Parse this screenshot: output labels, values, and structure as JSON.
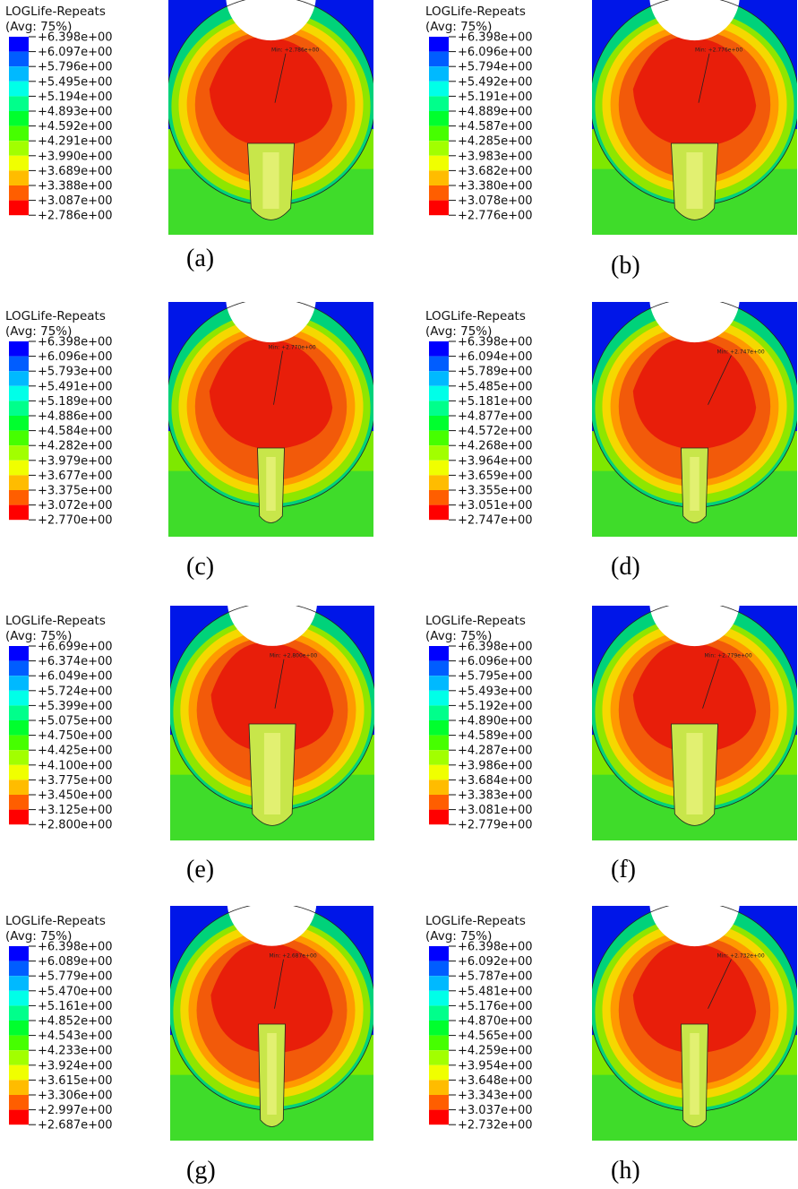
{
  "figure": {
    "panels": [
      {
        "caption": "(a)",
        "legend_title": "LOGLife-Repeats",
        "legend_avg": "(Avg: 75%)",
        "values": [
          "+6.398e+00",
          "+6.097e+00",
          "+5.796e+00",
          "+5.495e+00",
          "+5.194e+00",
          "+4.893e+00",
          "+4.592e+00",
          "+4.291e+00",
          "+3.990e+00",
          "+3.689e+00",
          "+3.388e+00",
          "+3.087e+00",
          "+2.786e+00"
        ],
        "min_label": "Min: +2.786e+00"
      },
      {
        "caption": "(b)",
        "legend_title": "LOGLife-Repeats",
        "legend_avg": "(Avg: 75%)",
        "values": [
          "+6.398e+00",
          "+6.096e+00",
          "+5.794e+00",
          "+5.492e+00",
          "+5.191e+00",
          "+4.889e+00",
          "+4.587e+00",
          "+4.285e+00",
          "+3.983e+00",
          "+3.682e+00",
          "+3.380e+00",
          "+3.078e+00",
          "+2.776e+00"
        ],
        "min_label": "Min: +2.776e+00"
      },
      {
        "caption": "(c)",
        "legend_title": "LOGLife-Repeats",
        "legend_avg": "(Avg: 75%)",
        "values": [
          "+6.398e+00",
          "+6.096e+00",
          "+5.793e+00",
          "+5.491e+00",
          "+5.189e+00",
          "+4.886e+00",
          "+4.584e+00",
          "+4.282e+00",
          "+3.979e+00",
          "+3.677e+00",
          "+3.375e+00",
          "+3.072e+00",
          "+2.770e+00"
        ],
        "min_label": "Min: +2.770e+00"
      },
      {
        "caption": "(d)",
        "legend_title": "LOGLife-Repeats",
        "legend_avg": "(Avg: 75%)",
        "values": [
          "+6.398e+00",
          "+6.094e+00",
          "+5.789e+00",
          "+5.485e+00",
          "+5.181e+00",
          "+4.877e+00",
          "+4.572e+00",
          "+4.268e+00",
          "+3.964e+00",
          "+3.659e+00",
          "+3.355e+00",
          "+3.051e+00",
          "+2.747e+00"
        ],
        "min_label": "Min: +2.747e+00"
      },
      {
        "caption": "(e)",
        "legend_title": "LOGLife-Repeats",
        "legend_avg": "(Avg: 75%)",
        "values": [
          "+6.699e+00",
          "+6.374e+00",
          "+6.049e+00",
          "+5.724e+00",
          "+5.399e+00",
          "+5.075e+00",
          "+4.750e+00",
          "+4.425e+00",
          "+4.100e+00",
          "+3.775e+00",
          "+3.450e+00",
          "+3.125e+00",
          "+2.800e+00"
        ],
        "min_label": "Min: +2.800e+00"
      },
      {
        "caption": "(f)",
        "legend_title": "LOGLife-Repeats",
        "legend_avg": "(Avg: 75%)",
        "values": [
          "+6.398e+00",
          "+6.096e+00",
          "+5.795e+00",
          "+5.493e+00",
          "+5.192e+00",
          "+4.890e+00",
          "+4.589e+00",
          "+4.287e+00",
          "+3.986e+00",
          "+3.684e+00",
          "+3.383e+00",
          "+3.081e+00",
          "+2.779e+00"
        ],
        "min_label": "Min: +2.779e+00"
      },
      {
        "caption": "(g)",
        "legend_title": "LOGLife-Repeats",
        "legend_avg": "(Avg: 75%)",
        "values": [
          "+6.398e+00",
          "+6.089e+00",
          "+5.779e+00",
          "+5.470e+00",
          "+5.161e+00",
          "+4.852e+00",
          "+4.543e+00",
          "+4.233e+00",
          "+3.924e+00",
          "+3.615e+00",
          "+3.306e+00",
          "+2.997e+00",
          "+2.687e+00"
        ],
        "min_label": "Min: +2.687e+00"
      },
      {
        "caption": "(h)",
        "legend_title": "LOGLife-Repeats",
        "legend_avg": "(Avg: 75%)",
        "values": [
          "+6.398e+00",
          "+6.092e+00",
          "+5.787e+00",
          "+5.481e+00",
          "+5.176e+00",
          "+4.870e+00",
          "+4.565e+00",
          "+4.259e+00",
          "+3.954e+00",
          "+3.648e+00",
          "+3.343e+00",
          "+3.037e+00",
          "+2.732e+00"
        ],
        "min_label": "Min: +2.732e+00"
      }
    ],
    "colormap": [
      "#0000ff",
      "#005dff",
      "#00b9ff",
      "#00ffe8",
      "#00ff8b",
      "#00ff2e",
      "#46ff00",
      "#a2ff00",
      "#f0ff00",
      "#ffbc00",
      "#ff5e00",
      "#ff0000"
    ]
  }
}
